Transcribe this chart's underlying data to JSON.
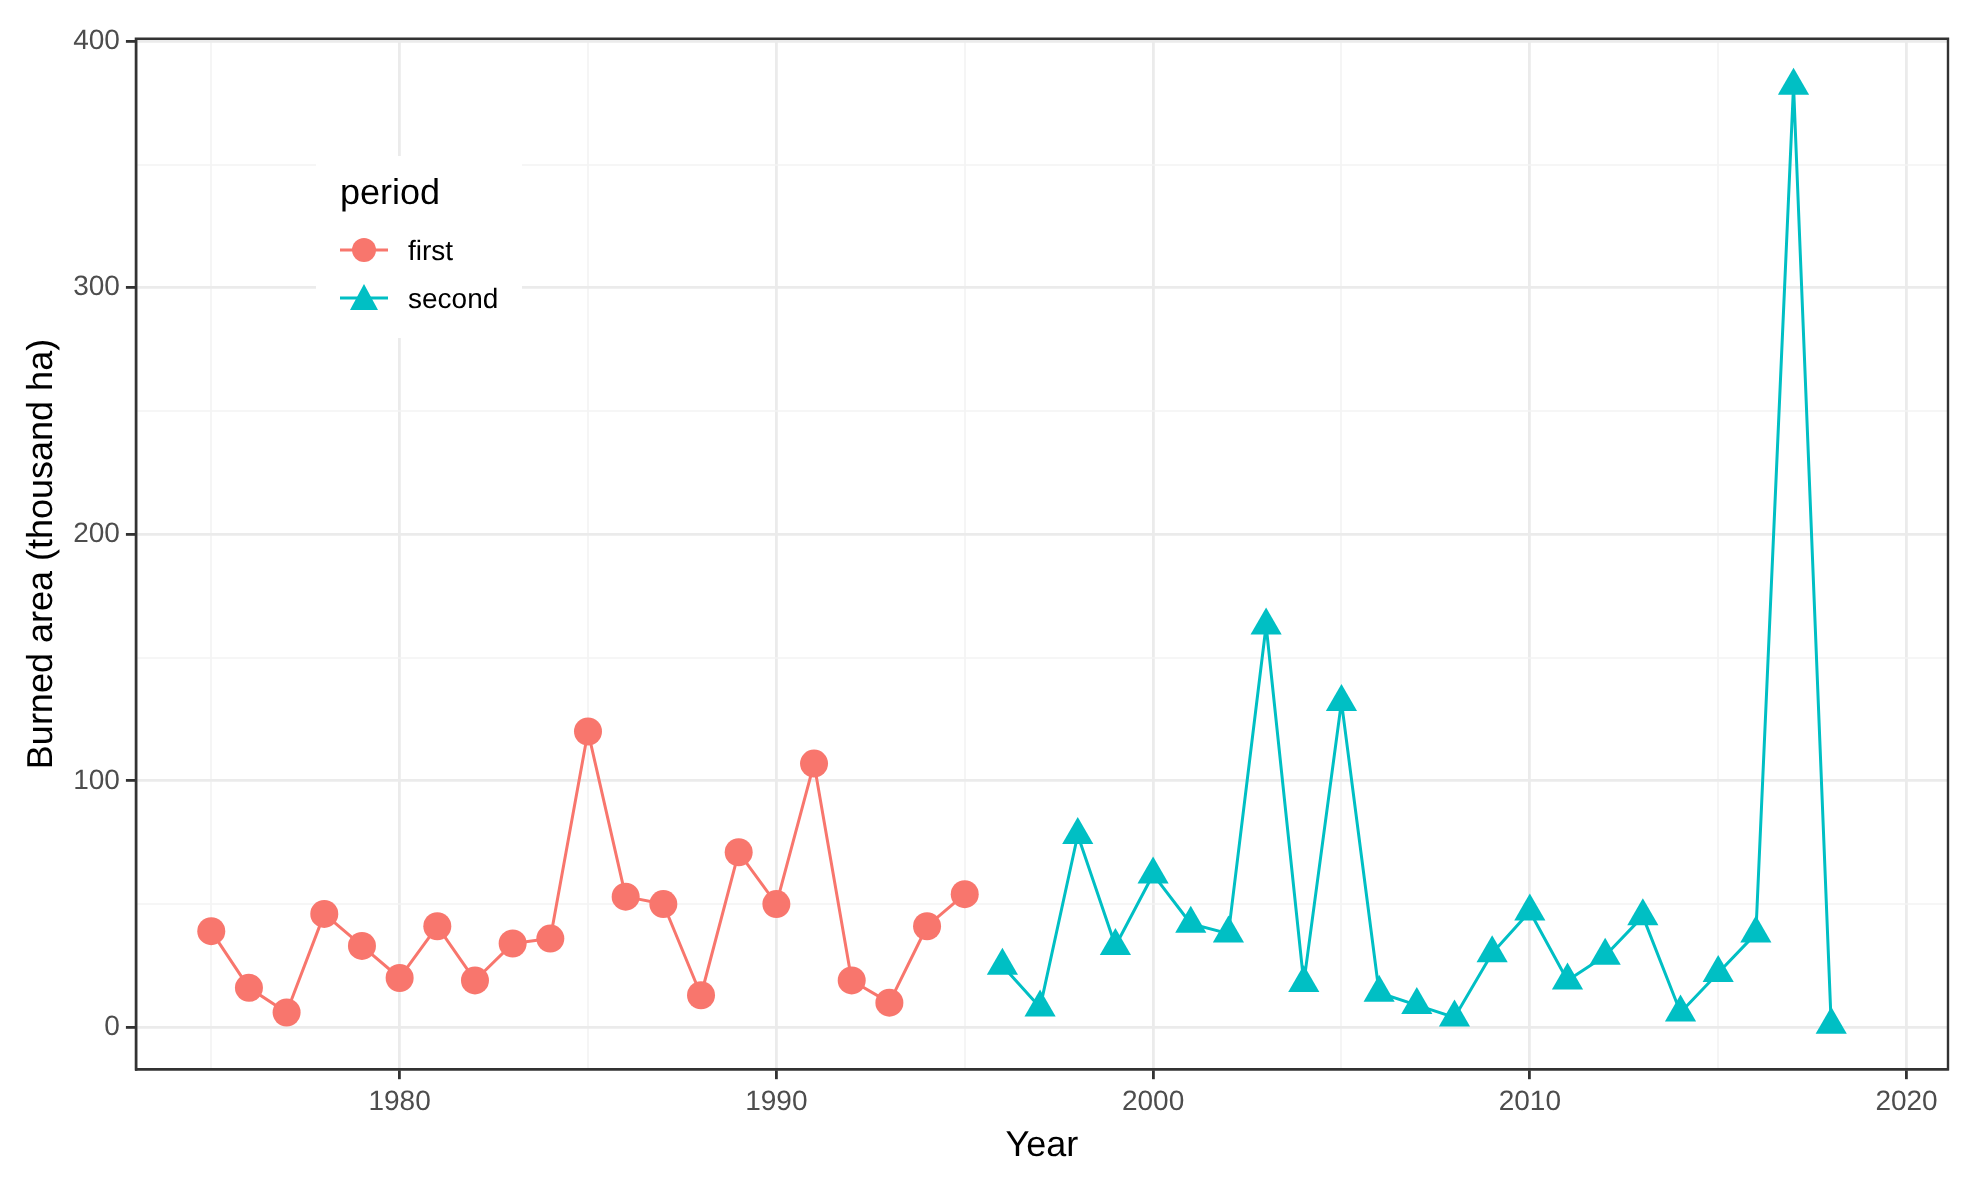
{
  "chart_data": {
    "type": "line",
    "xlabel": "Year",
    "ylabel": "Burned area (thousand ha)",
    "legend_title": "period",
    "legend": "top left",
    "grid": true,
    "xlim": [
      1973,
      2021.1
    ],
    "xticks": [
      {
        "value": 1975,
        "label": null
      },
      1980,
      {
        "value": 1985,
        "label": null
      },
      1990,
      {
        "value": 1995,
        "label": null
      },
      2000,
      {
        "value": 2005,
        "label": null
      },
      2010,
      {
        "value": 2015,
        "label": null
      },
      2020
    ],
    "ylim": [
      -17,
      401
    ],
    "yticks": [
      0,
      {
        "value": 50,
        "label": null
      },
      100,
      {
        "value": 150,
        "label": null
      },
      200,
      {
        "value": 250,
        "label": null
      },
      300,
      {
        "value": 350,
        "label": null
      },
      400
    ],
    "series": [
      {
        "name": "first",
        "color": "#f8766d",
        "marker": "circle",
        "x": [
          1975,
          1976,
          1977,
          1978,
          1979,
          1980,
          1981,
          1982,
          1983,
          1984,
          1985,
          1986,
          1987,
          1988,
          1989,
          1990,
          1991,
          1992,
          1993,
          1994,
          1995
        ],
        "values": [
          39,
          16,
          6,
          46,
          33,
          20,
          41,
          19,
          34,
          36,
          120,
          53,
          50,
          13,
          71,
          50,
          107,
          19,
          10,
          41,
          54
        ]
      },
      {
        "name": "second",
        "color": "#00bfc4",
        "marker": "triangle",
        "x": [
          1996,
          1997,
          1998,
          1999,
          2000,
          2001,
          2002,
          2003,
          2004,
          2005,
          2006,
          2007,
          2008,
          2009,
          2010,
          2011,
          2012,
          2013,
          2014,
          2015,
          2016,
          2017,
          2018
        ],
        "values": [
          25,
          8,
          78,
          33,
          62,
          42,
          38,
          163,
          18,
          132,
          14,
          9,
          4,
          30,
          47,
          19,
          29,
          45,
          6,
          22,
          38,
          382,
          1
        ]
      }
    ]
  }
}
